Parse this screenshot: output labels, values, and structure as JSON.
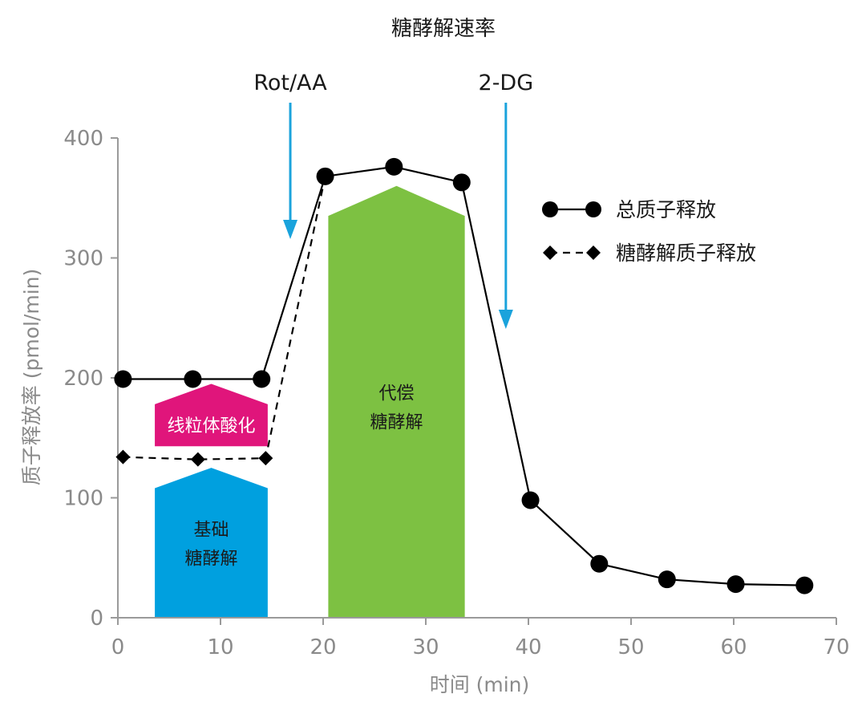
{
  "chart_data": {
    "type": "line",
    "title": "糖酵解速率",
    "xlabel": "时间 (min)",
    "ylabel": "质子释放率 (pmol/min)",
    "xlim": [
      0,
      70
    ],
    "ylim": [
      0,
      400
    ],
    "xticks": [
      0,
      10,
      20,
      30,
      40,
      50,
      60,
      70
    ],
    "yticks": [
      0,
      100,
      200,
      300,
      400
    ],
    "series": [
      {
        "name": "总质子释放",
        "style": "solid",
        "marker": "circle",
        "color": "#000000",
        "points": [
          [
            0.5,
            199
          ],
          [
            7.3,
            199
          ],
          [
            14,
            199
          ],
          [
            20.2,
            368
          ],
          [
            26.9,
            376
          ],
          [
            33.5,
            363
          ],
          [
            40.2,
            98
          ],
          [
            46.9,
            45
          ],
          [
            53.5,
            32
          ],
          [
            60.2,
            28
          ],
          [
            66.9,
            27
          ]
        ]
      },
      {
        "name": "糖酵解质子释放",
        "style": "dashed",
        "marker": "diamond",
        "color": "#000000",
        "points": [
          [
            0.5,
            134
          ],
          [
            7.8,
            132
          ],
          [
            14.4,
            133
          ],
          [
            20.2,
            368
          ]
        ]
      }
    ],
    "injections": [
      {
        "label": "Rot/AA",
        "x": 16.8,
        "color": "#1aa3dc"
      },
      {
        "label": "2-DG",
        "x": 37.8,
        "color": "#1aa3dc"
      }
    ],
    "regions": [
      {
        "label": [
          "基础",
          "糖酵解"
        ],
        "x0": 3.6,
        "x1": 14.6,
        "y0": 0,
        "y1": 108,
        "peak": 125,
        "color": "#00a0df",
        "text_color": "#1a1a1a"
      },
      {
        "label": [
          "线粒体酸化"
        ],
        "x0": 3.6,
        "x1": 14.6,
        "y0": 143,
        "y1": 178,
        "peak": 195,
        "color": "#e0157b",
        "text_color": "#ffffff"
      },
      {
        "label": [
          "代偿",
          "糖酵解"
        ],
        "x0": 20.5,
        "x1": 33.8,
        "y0": 0,
        "y1": 335,
        "peak": 360,
        "color": "#7dc142",
        "text_color": "#1a1a1a"
      }
    ],
    "legend": {
      "position": "top-right",
      "entries": [
        "总质子释放",
        "糖酵解质子释放"
      ]
    },
    "axis_color": "#9a9a9a"
  }
}
